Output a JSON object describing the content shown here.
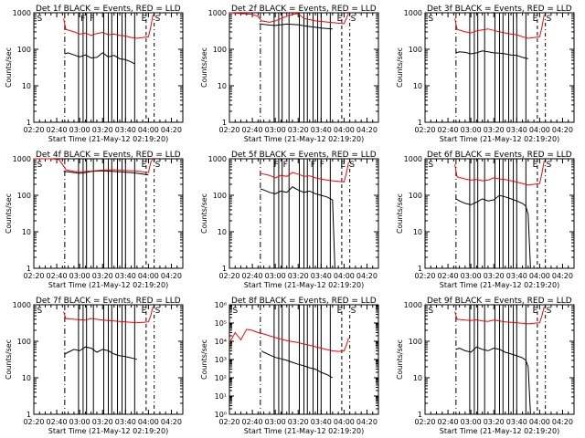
{
  "figure": {
    "xlabel": "Start Time (21-May-12 02:19:20)",
    "ylabel": "Counts/sec",
    "x_tick_labels": [
      "02:20",
      "02:40",
      "03:00",
      "03:20",
      "03:40",
      "04:00",
      "04:20"
    ]
  },
  "colors": {
    "events": "#000000",
    "lld": "#ff0000",
    "axes": "#000000"
  },
  "chart_data": [
    {
      "type": "line",
      "title": "Det 1f BLACK = Events, RED = LLD",
      "xlabel": "Start Time (21-May-12 02:19:20)",
      "ylabel": "Counts/sec",
      "xlim": [
        "02:20",
        "04:30"
      ],
      "yscale": "log",
      "ylim": [
        1,
        1000
      ],
      "y_tick_labels": [
        "1",
        "10",
        "100",
        "1000"
      ],
      "markers": {
        "S": [
          "02:22",
          "04:05"
        ],
        "F": [
          "03:00",
          "03:08"
        ],
        "E": [
          "03:53"
        ]
      },
      "series": [
        {
          "name": "Events",
          "color": "#000000",
          "x": [
            "02:47",
            "02:50",
            "02:55",
            "03:00",
            "03:05",
            "03:10",
            "03:15",
            "03:20",
            "03:25",
            "03:30",
            "03:35",
            "03:40",
            "03:45",
            "03:48"
          ],
          "y": [
            75,
            80,
            70,
            62,
            70,
            58,
            60,
            80,
            62,
            68,
            55,
            52,
            45,
            40
          ]
        },
        {
          "name": "LLD",
          "color": "#ff0000",
          "x": [
            "02:46",
            "02:48",
            "02:55",
            "03:00",
            "03:05",
            "03:10",
            "03:15",
            "03:20",
            "03:25",
            "03:30",
            "03:35",
            "03:40",
            "03:45",
            "03:50",
            "03:55",
            "04:00",
            "04:02",
            "04:04"
          ],
          "y": [
            700,
            350,
            300,
            260,
            280,
            240,
            270,
            290,
            250,
            260,
            240,
            230,
            210,
            200,
            210,
            220,
            400,
            900
          ]
        }
      ]
    },
    {
      "type": "line",
      "title": "Det 2f BLACK = Events, RED = LLD",
      "xlabel": "Start Time (21-May-12 02:19:20)",
      "ylabel": "Counts/sec",
      "xlim": [
        "02:20",
        "04:30"
      ],
      "yscale": "log",
      "ylim": [
        1,
        1000
      ],
      "y_tick_labels": [
        "1",
        "10",
        "100",
        "1000"
      ],
      "markers": {
        "S": [
          "04:05"
        ],
        "E": [
          "03:53"
        ]
      },
      "series": [
        {
          "name": "Events",
          "color": "#000000",
          "x": [
            "02:46",
            "02:50",
            "02:55",
            "03:00",
            "03:05",
            "03:10",
            "03:15",
            "03:20",
            "03:25",
            "03:30",
            "03:35",
            "03:40",
            "03:45",
            "03:50"
          ],
          "y": [
            500,
            480,
            460,
            450,
            470,
            490,
            480,
            470,
            440,
            420,
            400,
            380,
            370,
            360
          ]
        },
        {
          "name": "LLD",
          "color": "#ff0000",
          "x": [
            "02:20",
            "02:30",
            "02:40",
            "02:45",
            "02:48",
            "02:55",
            "03:00",
            "03:05",
            "03:10",
            "03:15",
            "03:20",
            "03:25",
            "03:30",
            "03:35",
            "03:40",
            "03:45",
            "03:50",
            "03:55",
            "04:00",
            "04:02",
            "04:04"
          ],
          "y": [
            1000,
            950,
            900,
            800,
            600,
            550,
            600,
            700,
            800,
            900,
            950,
            700,
            650,
            600,
            580,
            560,
            540,
            520,
            500,
            700,
            1000
          ]
        }
      ]
    },
    {
      "type": "line",
      "title": "Det 3f BLACK = Events, RED = LLD",
      "xlabel": "Start Time (21-May-12 02:19:20)",
      "ylabel": "Counts/sec",
      "xlim": [
        "02:20",
        "04:30"
      ],
      "yscale": "log",
      "ylim": [
        1,
        1000
      ],
      "y_tick_labels": [
        "1",
        "10",
        "100",
        "1000"
      ],
      "markers": {
        "S": [
          "02:22",
          "04:05"
        ],
        "E": [
          "03:53"
        ]
      },
      "series": [
        {
          "name": "Events",
          "color": "#000000",
          "x": [
            "02:47",
            "02:50",
            "02:55",
            "03:00",
            "03:05",
            "03:10",
            "03:15",
            "03:20",
            "03:25",
            "03:30",
            "03:35",
            "03:40",
            "03:45",
            "03:50"
          ],
          "y": [
            80,
            85,
            82,
            75,
            80,
            90,
            85,
            80,
            78,
            75,
            70,
            68,
            60,
            55
          ]
        },
        {
          "name": "LLD",
          "color": "#ff0000",
          "x": [
            "02:46",
            "02:48",
            "02:55",
            "03:00",
            "03:05",
            "03:10",
            "03:15",
            "03:20",
            "03:25",
            "03:30",
            "03:35",
            "03:40",
            "03:45",
            "03:50",
            "03:55",
            "04:00",
            "04:02",
            "04:04"
          ],
          "y": [
            700,
            350,
            300,
            280,
            320,
            340,
            360,
            330,
            300,
            280,
            260,
            250,
            220,
            200,
            210,
            220,
            400,
            900
          ]
        }
      ]
    },
    {
      "type": "line",
      "title": "Det 4f BLACK = Events, RED = LLD",
      "xlabel": "Start Time (21-May-12 02:19:20)",
      "ylabel": "Counts/sec",
      "xlim": [
        "02:20",
        "04:30"
      ],
      "yscale": "log",
      "ylim": [
        1,
        1000
      ],
      "y_tick_labels": [
        "1",
        "10",
        "100",
        "1000"
      ],
      "markers": {
        "S": [
          "02:22",
          "04:05"
        ],
        "E": [
          "03:53"
        ]
      },
      "series": [
        {
          "name": "Events",
          "color": "#000000",
          "x": [
            "02:46",
            "02:50",
            "02:55",
            "03:00",
            "03:05",
            "03:10",
            "03:15",
            "03:20",
            "03:25",
            "03:30",
            "03:35",
            "03:40",
            "03:45",
            "03:50",
            "03:55",
            "04:00"
          ],
          "y": [
            450,
            440,
            420,
            400,
            420,
            450,
            460,
            470,
            460,
            450,
            440,
            430,
            420,
            400,
            380,
            360
          ]
        },
        {
          "name": "LLD",
          "color": "#ff0000",
          "x": [
            "02:20",
            "02:35",
            "02:42",
            "02:45",
            "02:48",
            "02:55",
            "03:00",
            "03:10",
            "03:20",
            "03:30",
            "03:40",
            "03:50",
            "03:55",
            "04:00",
            "04:02",
            "04:04"
          ],
          "y": [
            1000,
            1000,
            950,
            700,
            500,
            450,
            440,
            460,
            490,
            500,
            480,
            460,
            440,
            420,
            800,
            1000
          ]
        }
      ]
    },
    {
      "type": "line",
      "title": "Det 5f BLACK = Events, RED = LLD",
      "xlabel": "Start Time (21-May-12 02:19:20)",
      "ylabel": "Counts/sec",
      "xlim": [
        "02:20",
        "04:30"
      ],
      "yscale": "log",
      "ylim": [
        1,
        1000
      ],
      "y_tick_labels": [
        "1",
        "10",
        "100",
        "1000"
      ],
      "markers": {
        "F": [
          "02:58",
          "03:06",
          "03:30",
          "03:38"
        ],
        "E": [
          "03:56"
        ],
        "S": [
          "04:04"
        ]
      },
      "series": [
        {
          "name": "Events",
          "color": "#000000",
          "x": [
            "02:47",
            "02:50",
            "02:55",
            "03:00",
            "03:05",
            "03:10",
            "03:15",
            "03:20",
            "03:25",
            "03:30",
            "03:35",
            "03:40",
            "03:45",
            "03:50",
            "03:52"
          ],
          "y": [
            150,
            140,
            120,
            110,
            130,
            120,
            170,
            140,
            120,
            130,
            110,
            100,
            90,
            75,
            1
          ]
        },
        {
          "name": "LLD",
          "color": "#ff0000",
          "x": [
            "02:47",
            "02:50",
            "02:55",
            "03:00",
            "03:05",
            "03:10",
            "03:15",
            "03:20",
            "03:25",
            "03:30",
            "03:35",
            "03:40",
            "03:45",
            "03:50",
            "03:55",
            "04:00",
            "04:02",
            "04:04"
          ],
          "y": [
            400,
            380,
            350,
            300,
            350,
            330,
            420,
            380,
            330,
            340,
            300,
            280,
            260,
            250,
            240,
            230,
            400,
            800
          ]
        }
      ]
    },
    {
      "type": "line",
      "title": "Det 6f BLACK = Events, RED = LLD",
      "xlabel": "Start Time (21-May-12 02:19:20)",
      "ylabel": "Counts/sec",
      "xlim": [
        "02:20",
        "04:30"
      ],
      "yscale": "log",
      "ylim": [
        1,
        1000
      ],
      "y_tick_labels": [
        "1",
        "10",
        "100",
        "1000"
      ],
      "markers": {
        "S": [
          "02:22",
          "04:05"
        ],
        "E": [
          "03:53"
        ]
      },
      "series": [
        {
          "name": "Events",
          "color": "#000000",
          "x": [
            "02:47",
            "02:50",
            "02:55",
            "03:00",
            "03:05",
            "03:10",
            "03:15",
            "03:20",
            "03:25",
            "03:30",
            "03:35",
            "03:40",
            "03:45",
            "03:48",
            "03:50",
            "03:52"
          ],
          "y": [
            80,
            70,
            60,
            55,
            65,
            80,
            70,
            75,
            100,
            90,
            80,
            70,
            60,
            50,
            30,
            1
          ]
        },
        {
          "name": "LLD",
          "color": "#ff0000",
          "x": [
            "02:46",
            "02:48",
            "02:55",
            "03:00",
            "03:05",
            "03:10",
            "03:15",
            "03:20",
            "03:25",
            "03:30",
            "03:35",
            "03:40",
            "03:45",
            "03:50",
            "03:55",
            "04:00",
            "04:02",
            "04:04"
          ],
          "y": [
            700,
            320,
            280,
            260,
            270,
            250,
            260,
            300,
            280,
            270,
            250,
            230,
            210,
            190,
            200,
            210,
            400,
            900
          ]
        }
      ]
    },
    {
      "type": "line",
      "title": "Det 7f BLACK = Events, RED = LLD",
      "xlabel": "Start Time (21-May-12 02:19:20)",
      "ylabel": "Counts/sec",
      "xlim": [
        "02:20",
        "04:30"
      ],
      "yscale": "log",
      "ylim": [
        1,
        1000
      ],
      "y_tick_labels": [
        "1",
        "10",
        "100",
        "1000"
      ],
      "markers": {
        "S": [
          "02:22",
          "04:05"
        ],
        "E": [
          "03:53"
        ]
      },
      "series": [
        {
          "name": "Events",
          "color": "#000000",
          "x": [
            "02:47",
            "02:50",
            "02:55",
            "03:00",
            "03:05",
            "03:10",
            "03:15",
            "03:20",
            "03:25",
            "03:30",
            "03:35",
            "03:40",
            "03:45",
            "03:50"
          ],
          "y": [
            45,
            50,
            60,
            55,
            70,
            65,
            50,
            60,
            55,
            45,
            40,
            38,
            35,
            32
          ]
        },
        {
          "name": "LLD",
          "color": "#ff0000",
          "x": [
            "02:46",
            "02:48",
            "02:55",
            "03:00",
            "03:05",
            "03:10",
            "03:15",
            "03:20",
            "03:25",
            "03:30",
            "03:35",
            "03:40",
            "03:45",
            "03:50",
            "03:55",
            "04:00",
            "04:02",
            "04:04"
          ],
          "y": [
            650,
            420,
            400,
            390,
            380,
            420,
            400,
            380,
            370,
            360,
            350,
            340,
            330,
            320,
            330,
            340,
            500,
            900
          ]
        }
      ]
    },
    {
      "type": "line",
      "title": "Det 8f BLACK = Events, RED = LLD",
      "xlabel": "Start Time (21-May-12 02:19:20)",
      "ylabel": "Counts/sec",
      "xlim": [
        "02:20",
        "04:30"
      ],
      "yscale": "log",
      "ylim": [
        1,
        1000000
      ],
      "y_tick_labels": [
        "10⁰",
        "10¹",
        "10²",
        "10³",
        "10⁴",
        "10⁵",
        "10⁶"
      ],
      "markers": {
        "S": [
          "02:22",
          "04:05"
        ],
        "E": [
          "03:53"
        ]
      },
      "series": [
        {
          "name": "Events",
          "color": "#000000",
          "x": [
            "02:48",
            "02:50",
            "02:55",
            "03:00",
            "03:05",
            "03:10",
            "03:15",
            "03:20",
            "03:25",
            "03:30",
            "03:35",
            "03:40",
            "03:45",
            "03:50"
          ],
          "y": [
            3000,
            2500,
            1800,
            1300,
            1100,
            900,
            700,
            550,
            450,
            350,
            300,
            200,
            150,
            100
          ]
        },
        {
          "name": "LLD",
          "color": "#ff0000",
          "x": [
            "02:20",
            "02:25",
            "02:30",
            "02:35",
            "02:40",
            "02:45",
            "02:50",
            "02:55",
            "03:00",
            "03:05",
            "03:10",
            "03:15",
            "03:20",
            "03:25",
            "03:30",
            "03:35",
            "03:40",
            "03:45",
            "03:50",
            "03:55",
            "04:00",
            "04:02",
            "04:04"
          ],
          "y": [
            8000,
            30000,
            12000,
            45000,
            40000,
            30000,
            25000,
            20000,
            16000,
            13000,
            11000,
            9500,
            8500,
            7000,
            6000,
            5000,
            4200,
            3500,
            3000,
            2800,
            3000,
            6000,
            15000
          ]
        }
      ]
    },
    {
      "type": "line",
      "title": "Det 9f BLACK = Events, RED = LLD",
      "xlabel": "Start Time (21-May-12 02:19:20)",
      "ylabel": "Counts/sec",
      "xlim": [
        "02:20",
        "04:30"
      ],
      "yscale": "log",
      "ylim": [
        1,
        1000
      ],
      "y_tick_labels": [
        "1",
        "10",
        "100",
        "1000"
      ],
      "markers": {
        "S": [
          "02:22",
          "04:05"
        ],
        "E": [
          "03:53"
        ]
      },
      "series": [
        {
          "name": "Events",
          "color": "#000000",
          "x": [
            "02:47",
            "02:50",
            "02:55",
            "03:00",
            "03:05",
            "03:10",
            "03:15",
            "03:20",
            "03:25",
            "03:30",
            "03:35",
            "03:40",
            "03:45",
            "03:48",
            "03:50",
            "03:52"
          ],
          "y": [
            60,
            65,
            55,
            50,
            70,
            60,
            55,
            65,
            60,
            50,
            45,
            40,
            35,
            30,
            20,
            1
          ]
        },
        {
          "name": "LLD",
          "color": "#ff0000",
          "x": [
            "02:46",
            "02:48",
            "02:55",
            "03:00",
            "03:05",
            "03:10",
            "03:15",
            "03:20",
            "03:25",
            "03:30",
            "03:35",
            "03:40",
            "03:45",
            "03:50",
            "03:55",
            "04:00",
            "04:02",
            "04:04"
          ],
          "y": [
            650,
            400,
            380,
            370,
            390,
            360,
            350,
            380,
            360,
            340,
            330,
            320,
            310,
            300,
            310,
            320,
            500,
            900
          ]
        }
      ]
    }
  ]
}
